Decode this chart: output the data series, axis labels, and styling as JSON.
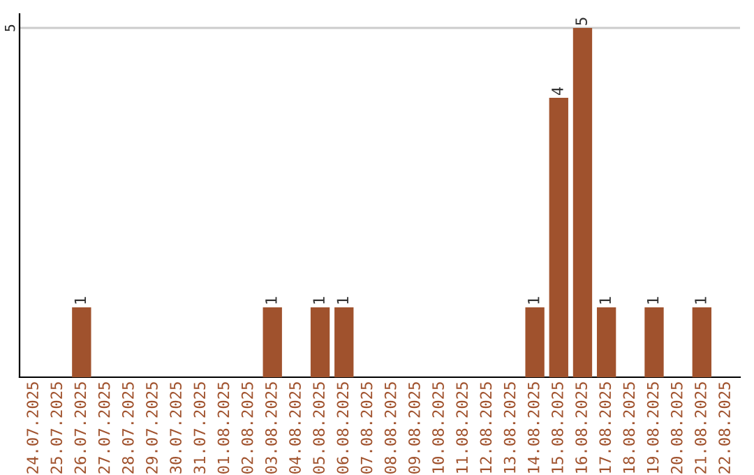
{
  "chart_data": {
    "type": "bar",
    "categories": [
      "24.07.2025",
      "25.07.2025",
      "26.07.2025",
      "27.07.2025",
      "28.07.2025",
      "29.07.2025",
      "30.07.2025",
      "31.07.2025",
      "01.08.2025",
      "02.08.2025",
      "03.08.2025",
      "04.08.2025",
      "05.08.2025",
      "06.08.2025",
      "07.08.2025",
      "08.08.2025",
      "09.08.2025",
      "10.08.2025",
      "11.08.2025",
      "12.08.2025",
      "13.08.2025",
      "14.08.2025",
      "15.08.2025",
      "16.08.2025",
      "17.08.2025",
      "18.08.2025",
      "19.08.2025",
      "20.08.2025",
      "21.08.2025",
      "22.08.2025"
    ],
    "values": [
      0,
      0,
      1,
      0,
      0,
      0,
      0,
      0,
      0,
      0,
      1,
      0,
      1,
      1,
      0,
      0,
      0,
      0,
      0,
      0,
      0,
      1,
      4,
      5,
      1,
      0,
      1,
      0,
      1,
      0
    ],
    "value_labels": [
      null,
      null,
      "1",
      null,
      null,
      null,
      null,
      null,
      null,
      null,
      "1",
      null,
      "1",
      "1",
      null,
      null,
      null,
      null,
      null,
      null,
      null,
      "1",
      "4",
      "5",
      "1",
      null,
      "1",
      null,
      "1",
      null
    ],
    "color": "#a0522d",
    "ylim": [
      0,
      5.2
    ],
    "yticks": [
      5
    ],
    "grid": "y",
    "legend": false
  }
}
